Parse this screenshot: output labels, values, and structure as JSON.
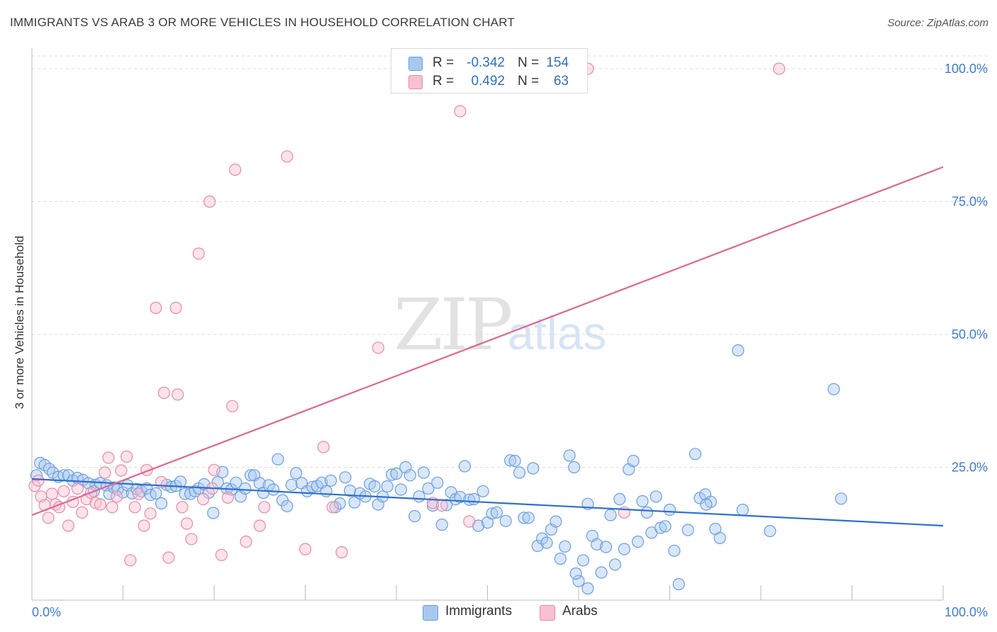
{
  "title": "IMMIGRANTS VS ARAB 3 OR MORE VEHICLES IN HOUSEHOLD CORRELATION CHART",
  "source": "Source: ZipAtlas.com",
  "watermark": {
    "zip": "ZIP",
    "atlas": "atlas"
  },
  "legend": {
    "rows": [
      {
        "r_label": "R =",
        "r_value": "-0.342",
        "n_label": "N =",
        "n_value": "154",
        "color": "#a8c8f0",
        "border": "#6a9fe0"
      },
      {
        "r_label": "R =",
        "r_value": "0.492",
        "n_label": "N =",
        "n_value": "63",
        "color": "#f8c0d0",
        "border": "#e88aa8"
      }
    ]
  },
  "bottom_legend": {
    "immigrants": "Immigrants",
    "arabs": "Arabs"
  },
  "chart_data": {
    "type": "scatter",
    "title": "IMMIGRANTS VS ARAB 3 OR MORE VEHICLES IN HOUSEHOLD CORRELATION CHART",
    "xlabel": "",
    "ylabel": "3 or more Vehicles in Household",
    "xlim": [
      0,
      100
    ],
    "ylim": [
      0,
      100
    ],
    "x_tick_labels": [
      "0.0%",
      "100.0%"
    ],
    "y_tick_labels": [
      "25.0%",
      "50.0%",
      "75.0%",
      "100.0%"
    ],
    "y_tick_values": [
      25,
      50,
      75,
      100
    ],
    "grid": "horizontal dashed",
    "colors": {
      "immigrants": "#6a9fe0",
      "immigrants_fill": "#a8c8f0",
      "immigrants_line": "#2f6fcf",
      "arabs": "#e88aa8",
      "arabs_fill": "#f8c0d0",
      "arabs_line": "#e26592"
    },
    "series": [
      {
        "name": "Immigrants",
        "trend": {
          "x": [
            0,
            100
          ],
          "y": [
            22.8,
            14.0
          ]
        },
        "points": [
          [
            0.5,
            23.5
          ],
          [
            0.9,
            25.8
          ],
          [
            1.4,
            25.4
          ],
          [
            1.9,
            24.7
          ],
          [
            2.3,
            24.0
          ],
          [
            2.9,
            23.2
          ],
          [
            3.5,
            23.5
          ],
          [
            4.0,
            23.5
          ],
          [
            4.5,
            22.5
          ],
          [
            5.0,
            23.0
          ],
          [
            5.6,
            22.6
          ],
          [
            6.2,
            22.0
          ],
          [
            6.8,
            20.5
          ],
          [
            7.0,
            21.7
          ],
          [
            7.5,
            22.0
          ],
          [
            8.2,
            21.6
          ],
          [
            8.5,
            20.0
          ],
          [
            9.0,
            21.2
          ],
          [
            9.4,
            20.8
          ],
          [
            10.0,
            20.3
          ],
          [
            10.5,
            21.6
          ],
          [
            11.0,
            20.1
          ],
          [
            11.5,
            20.9
          ],
          [
            12.0,
            20.5
          ],
          [
            12.6,
            21.0
          ],
          [
            13.0,
            19.8
          ],
          [
            13.6,
            20.1
          ],
          [
            14.2,
            18.2
          ],
          [
            14.8,
            21.7
          ],
          [
            15.3,
            21.3
          ],
          [
            15.8,
            21.5
          ],
          [
            16.3,
            22.3
          ],
          [
            16.8,
            20.0
          ],
          [
            17.4,
            20.0
          ],
          [
            17.9,
            20.5
          ],
          [
            18.3,
            21.0
          ],
          [
            18.9,
            21.8
          ],
          [
            19.4,
            20.2
          ],
          [
            19.9,
            16.4
          ],
          [
            20.4,
            22.2
          ],
          [
            20.9,
            24.1
          ],
          [
            21.4,
            21.0
          ],
          [
            21.9,
            20.8
          ],
          [
            22.4,
            22.1
          ],
          [
            22.9,
            19.5
          ],
          [
            23.4,
            21.0
          ],
          [
            24.0,
            23.5
          ],
          [
            24.4,
            23.5
          ],
          [
            25.0,
            22.0
          ],
          [
            25.4,
            20.2
          ],
          [
            26.0,
            21.6
          ],
          [
            26.5,
            20.8
          ],
          [
            27.0,
            26.5
          ],
          [
            27.5,
            18.8
          ],
          [
            28.0,
            17.7
          ],
          [
            28.5,
            21.7
          ],
          [
            29.0,
            23.9
          ],
          [
            29.6,
            22.0
          ],
          [
            30.2,
            20.5
          ],
          [
            30.8,
            21.3
          ],
          [
            31.3,
            21.5
          ],
          [
            31.8,
            22.1
          ],
          [
            32.3,
            20.5
          ],
          [
            32.8,
            22.5
          ],
          [
            33.3,
            17.5
          ],
          [
            33.8,
            18.2
          ],
          [
            34.4,
            23.1
          ],
          [
            34.9,
            20.6
          ],
          [
            35.4,
            18.4
          ],
          [
            36.0,
            20.1
          ],
          [
            36.6,
            19.5
          ],
          [
            37.1,
            21.9
          ],
          [
            37.6,
            21.4
          ],
          [
            38.0,
            18.0
          ],
          [
            38.5,
            19.5
          ],
          [
            39.0,
            21.4
          ],
          [
            39.5,
            23.6
          ],
          [
            40.0,
            23.8
          ],
          [
            40.5,
            20.8
          ],
          [
            41.0,
            25.0
          ],
          [
            41.5,
            23.5
          ],
          [
            42.0,
            15.8
          ],
          [
            42.5,
            19.5
          ],
          [
            43.0,
            24.0
          ],
          [
            43.5,
            21.0
          ],
          [
            44.0,
            17.8
          ],
          [
            44.5,
            22.1
          ],
          [
            45.0,
            14.2
          ],
          [
            45.5,
            17.9
          ],
          [
            46.0,
            20.3
          ],
          [
            46.5,
            19.0
          ],
          [
            47.0,
            19.4
          ],
          [
            47.5,
            25.2
          ],
          [
            48.0,
            18.9
          ],
          [
            48.5,
            19.0
          ],
          [
            49.0,
            14.0
          ],
          [
            49.5,
            20.5
          ],
          [
            50.0,
            14.6
          ],
          [
            50.5,
            16.3
          ],
          [
            51.0,
            16.5
          ],
          [
            52.0,
            14.9
          ],
          [
            52.5,
            26.3
          ],
          [
            53.0,
            26.2
          ],
          [
            53.5,
            24.0
          ],
          [
            54.0,
            15.5
          ],
          [
            54.5,
            15.5
          ],
          [
            55.0,
            24.8
          ],
          [
            55.5,
            10.2
          ],
          [
            56.0,
            11.6
          ],
          [
            56.5,
            10.8
          ],
          [
            57.0,
            13.3
          ],
          [
            57.5,
            14.8
          ],
          [
            58.0,
            7.8
          ],
          [
            58.5,
            10.1
          ],
          [
            59.0,
            27.2
          ],
          [
            59.5,
            25.0
          ],
          [
            60.0,
            3.6
          ],
          [
            60.5,
            7.5
          ],
          [
            61.0,
            18.1
          ],
          [
            61.5,
            12.1
          ],
          [
            62.0,
            10.5
          ],
          [
            62.5,
            5.2
          ],
          [
            63.0,
            10.0
          ],
          [
            63.5,
            16.0
          ],
          [
            64.0,
            6.7
          ],
          [
            64.5,
            19.0
          ],
          [
            65.0,
            9.6
          ],
          [
            65.5,
            24.6
          ],
          [
            66.0,
            26.2
          ],
          [
            66.5,
            11.0
          ],
          [
            67.0,
            18.6
          ],
          [
            67.5,
            16.5
          ],
          [
            68.0,
            12.7
          ],
          [
            68.5,
            19.5
          ],
          [
            69.0,
            13.6
          ],
          [
            69.5,
            13.9
          ],
          [
            70.0,
            17.0
          ],
          [
            70.5,
            9.3
          ],
          [
            71.0,
            3.0
          ],
          [
            72.0,
            13.2
          ],
          [
            72.8,
            27.5
          ],
          [
            73.3,
            19.2
          ],
          [
            73.9,
            19.9
          ],
          [
            74.5,
            18.5
          ],
          [
            75.0,
            13.4
          ],
          [
            75.5,
            11.7
          ],
          [
            77.5,
            47.0
          ],
          [
            78.0,
            17.0
          ],
          [
            81.0,
            13.0
          ],
          [
            88.0,
            39.7
          ],
          [
            88.8,
            19.1
          ],
          [
            61.0,
            2.2
          ],
          [
            59.7,
            5.0
          ],
          [
            74.0,
            18.0
          ]
        ]
      },
      {
        "name": "Arabs",
        "trend": {
          "x": [
            0,
            100
          ],
          "y": [
            16.0,
            81.5
          ]
        },
        "points": [
          [
            0.3,
            21.5
          ],
          [
            0.7,
            22.5
          ],
          [
            1.0,
            19.5
          ],
          [
            1.4,
            17.9
          ],
          [
            1.8,
            15.5
          ],
          [
            2.2,
            20.0
          ],
          [
            2.6,
            18.0
          ],
          [
            3.0,
            17.5
          ],
          [
            3.5,
            20.5
          ],
          [
            4.0,
            14.0
          ],
          [
            4.5,
            18.5
          ],
          [
            5.0,
            21.0
          ],
          [
            5.5,
            16.5
          ],
          [
            6.0,
            19.0
          ],
          [
            6.5,
            20.2
          ],
          [
            7.0,
            18.3
          ],
          [
            7.5,
            18.0
          ],
          [
            8.0,
            24.0
          ],
          [
            8.4,
            26.8
          ],
          [
            8.8,
            17.5
          ],
          [
            9.3,
            19.5
          ],
          [
            9.8,
            24.4
          ],
          [
            10.4,
            27.0
          ],
          [
            10.8,
            7.5
          ],
          [
            11.3,
            17.5
          ],
          [
            11.7,
            20.0
          ],
          [
            12.3,
            14.0
          ],
          [
            12.6,
            24.5
          ],
          [
            13.0,
            16.3
          ],
          [
            13.6,
            55.0
          ],
          [
            14.2,
            22.2
          ],
          [
            14.5,
            39.0
          ],
          [
            15.0,
            8.0
          ],
          [
            15.8,
            55.0
          ],
          [
            16.0,
            38.7
          ],
          [
            16.5,
            17.5
          ],
          [
            17.0,
            14.4
          ],
          [
            17.5,
            11.5
          ],
          [
            18.3,
            65.2
          ],
          [
            18.8,
            19.0
          ],
          [
            19.5,
            75.0
          ],
          [
            19.8,
            21.0
          ],
          [
            20.0,
            24.5
          ],
          [
            20.8,
            8.5
          ],
          [
            21.5,
            19.3
          ],
          [
            22.0,
            36.5
          ],
          [
            22.3,
            81.0
          ],
          [
            23.5,
            11.0
          ],
          [
            25.0,
            14.0
          ],
          [
            25.5,
            17.5
          ],
          [
            28.0,
            83.5
          ],
          [
            30.0,
            9.6
          ],
          [
            32.0,
            28.8
          ],
          [
            33.0,
            17.5
          ],
          [
            34.0,
            9.0
          ],
          [
            38.0,
            47.5
          ],
          [
            44.0,
            18.3
          ],
          [
            45.0,
            17.8
          ],
          [
            47.0,
            92.0
          ],
          [
            48.0,
            14.8
          ],
          [
            61.0,
            100.0
          ],
          [
            65.0,
            16.5
          ],
          [
            82.0,
            100.0
          ]
        ]
      }
    ]
  }
}
